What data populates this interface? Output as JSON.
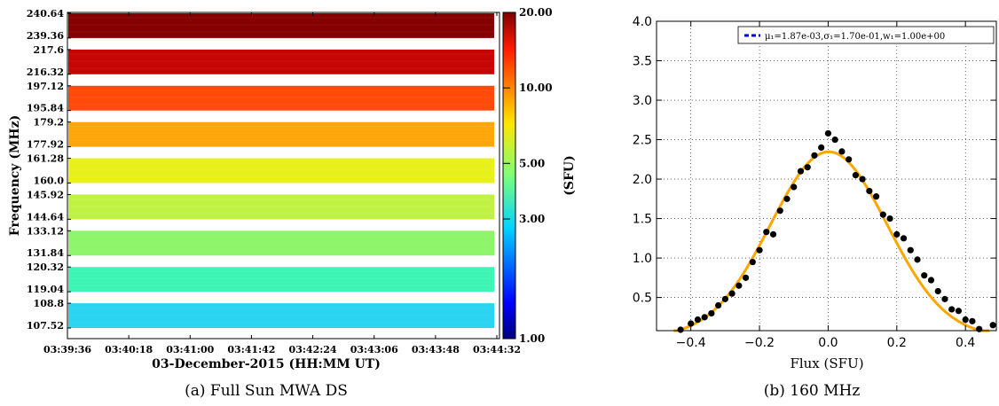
{
  "chart_data": [
    {
      "type": "heatmap",
      "caption": "(a) Full Sun MWA DS",
      "xlabel": "03-December-2015 (HH:MM UT)",
      "ylabel": "Frequency (MHz)",
      "x_ticks": [
        "03:39:36",
        "03:40:18",
        "03:41:00",
        "03:41:42",
        "03:42:24",
        "03:43:06",
        "03:43:48",
        "03:44:32"
      ],
      "y_ticks": [
        "240.64",
        "239.36",
        "217.6",
        "216.32",
        "197.12",
        "195.84",
        "179.2",
        "177.92",
        "161.28",
        "160.0",
        "145.92",
        "144.64",
        "133.12",
        "131.84",
        "120.32",
        "119.04",
        "108.8",
        "107.52"
      ],
      "bands": [
        {
          "fmax": "240.64",
          "fmin": "239.36",
          "flux_sfu": 24.0,
          "color": "#850000"
        },
        {
          "fmax": "217.6",
          "fmin": "216.32",
          "flux_sfu": 18.0,
          "color": "#c70505"
        },
        {
          "fmax": "197.12",
          "fmin": "195.84",
          "flux_sfu": 12.0,
          "color": "#ff4a0a"
        },
        {
          "fmax": "179.2",
          "fmin": "177.92",
          "flux_sfu": 8.0,
          "color": "#ffa60a"
        },
        {
          "fmax": "161.28",
          "fmin": "160.0",
          "flux_sfu": 6.0,
          "color": "#e8f11c"
        },
        {
          "fmax": "145.92",
          "fmin": "144.64",
          "flux_sfu": 5.0,
          "color": "#bff243"
        },
        {
          "fmax": "133.12",
          "fmin": "131.84",
          "flux_sfu": 4.4,
          "color": "#8ef56a"
        },
        {
          "fmax": "120.32",
          "fmin": "119.04",
          "flux_sfu": 3.6,
          "color": "#3ef5b6"
        },
        {
          "fmax": "108.8",
          "fmin": "107.52",
          "flux_sfu": 3.0,
          "color": "#2bd4f0"
        }
      ],
      "colorbar": {
        "label": "(SFU)",
        "scale": "log",
        "range": [
          1.0,
          20.0
        ],
        "ticks": [
          {
            "value": 20.0,
            "label": "20.00"
          },
          {
            "value": 10.0,
            "label": "10.00"
          },
          {
            "value": 5.0,
            "label": "5.00"
          },
          {
            "value": 3.0,
            "label": "3.00"
          },
          {
            "value": 1.0,
            "label": "1.00"
          }
        ],
        "colormap": "jet"
      }
    },
    {
      "type": "scatter",
      "caption": "(b) 160 MHz",
      "xlabel": "Flux (SFU)",
      "ylabel": "",
      "xlim": [
        -0.5,
        0.49
      ],
      "ylim": [
        0.08,
        4.0
      ],
      "x_ticks": [
        "−0.4",
        "−0.2",
        "0.0",
        "0.2",
        "0.4"
      ],
      "x_tick_values": [
        -0.4,
        -0.2,
        0.0,
        0.2,
        0.4
      ],
      "y_ticks": [
        "0.5",
        "1.0",
        "1.5",
        "2.0",
        "2.5",
        "3.0",
        "3.5",
        "4.0"
      ],
      "y_tick_values": [
        0.5,
        1.0,
        1.5,
        2.0,
        2.5,
        3.0,
        3.5,
        4.0
      ],
      "grid": true,
      "legend": {
        "position": "top-right",
        "text": "μ₁=1.87e-03,σ₁=1.70e-01,w₁=1.00e+00",
        "line_color": "#0000ff"
      },
      "fit": {
        "mu": 0.00187,
        "sigma": 0.17,
        "w": 1.0,
        "color": "#ffa500"
      },
      "points": {
        "color": "#000000",
        "x": [
          -0.43,
          -0.4,
          -0.38,
          -0.36,
          -0.34,
          -0.32,
          -0.3,
          -0.28,
          -0.26,
          -0.24,
          -0.22,
          -0.2,
          -0.18,
          -0.16,
          -0.14,
          -0.12,
          -0.1,
          -0.08,
          -0.06,
          -0.04,
          -0.02,
          0.0,
          0.02,
          0.04,
          0.06,
          0.08,
          0.1,
          0.12,
          0.14,
          0.16,
          0.18,
          0.2,
          0.22,
          0.24,
          0.26,
          0.28,
          0.3,
          0.32,
          0.34,
          0.36,
          0.38,
          0.4,
          0.42,
          0.44,
          0.48
        ],
        "y": [
          0.08,
          0.17,
          0.22,
          0.25,
          0.3,
          0.4,
          0.48,
          0.55,
          0.65,
          0.75,
          0.95,
          1.1,
          1.33,
          1.3,
          1.6,
          1.75,
          1.9,
          2.1,
          2.15,
          2.3,
          2.4,
          2.58,
          2.5,
          2.35,
          2.25,
          2.05,
          2.0,
          1.85,
          1.78,
          1.55,
          1.5,
          1.3,
          1.25,
          1.1,
          0.98,
          0.78,
          0.72,
          0.58,
          0.48,
          0.35,
          0.33,
          0.22,
          0.2,
          0.1,
          0.15
        ]
      }
    }
  ]
}
